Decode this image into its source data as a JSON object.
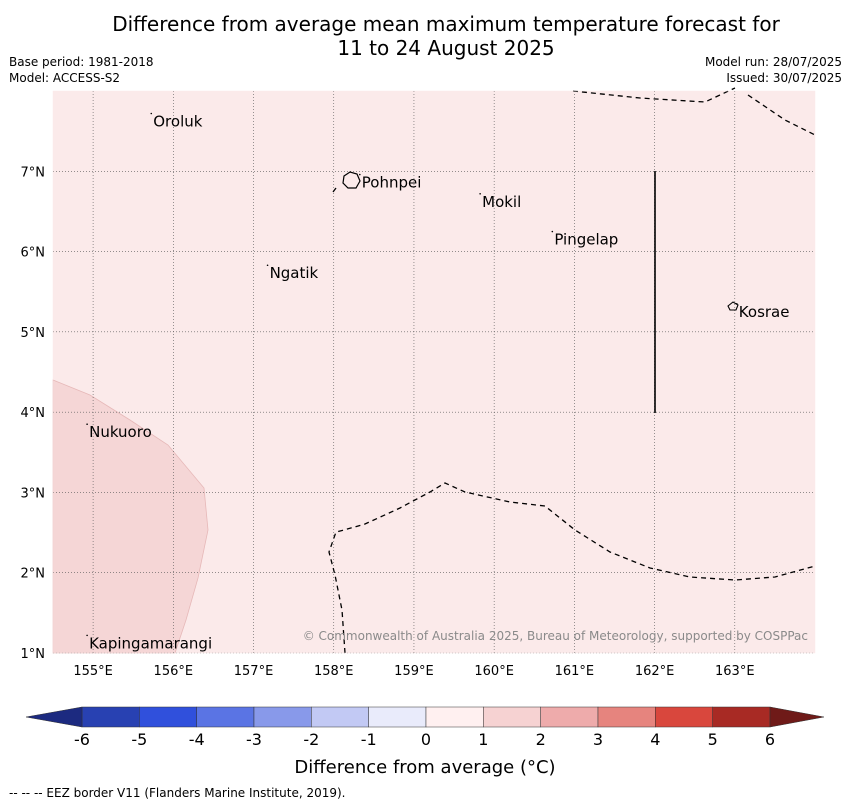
{
  "title_line1": "Difference from average mean maximum temperature forecast for",
  "title_line2": "11 to 24 August 2025",
  "base_period": "Base period: 1981-2018",
  "model": "Model: ACCESS-S2",
  "model_run": "Model run: 28/07/2025",
  "issued": "Issued: 30/07/2025",
  "lon_ticks": [
    "155°E",
    "156°E",
    "157°E",
    "158°E",
    "159°E",
    "160°E",
    "161°E",
    "162°E",
    "163°E"
  ],
  "lat_ticks": [
    "7°N",
    "6°N",
    "5°N",
    "4°N",
    "3°N",
    "2°N",
    "1°N"
  ],
  "places": [
    {
      "name": "Oroluk",
      "lon": 155.75,
      "lat": 7.62
    },
    {
      "name": "Pohnpei",
      "lon": 158.35,
      "lat": 6.86
    },
    {
      "name": "Mokil",
      "lon": 159.85,
      "lat": 6.62
    },
    {
      "name": "Pingelap",
      "lon": 160.75,
      "lat": 6.15
    },
    {
      "name": "Ngatik",
      "lon": 157.2,
      "lat": 5.73
    },
    {
      "name": "Kosrae",
      "lon": 163.05,
      "lat": 5.25
    },
    {
      "name": "Nukuoro",
      "lon": 154.95,
      "lat": 3.75
    },
    {
      "name": "Kapingamarangi",
      "lon": 154.95,
      "lat": 1.12
    }
  ],
  "copyright": "© Commonwealth of Australia 2025, Bureau of Meteorology, supported by COSPPac",
  "colorbar": {
    "labels": [
      "-6",
      "-5",
      "-4",
      "-3",
      "-2",
      "-1",
      "0",
      "1",
      "2",
      "3",
      "4",
      "5",
      "6"
    ],
    "colors": [
      "#2841b2",
      "#3050dc",
      "#5a74e4",
      "#8899ea",
      "#c2c9f4",
      "#e9ebfb",
      "#fff0f0",
      "#f6d2d2",
      "#eeabab",
      "#e6847e",
      "#d9473d",
      "#a82a24"
    ],
    "under_color": "#1c2a80",
    "over_color": "#6f1a18",
    "title": "Difference from average ($^{\\circ}$C)",
    "title_display": "Difference from average (°C)"
  },
  "map_fill": "#fbeaea",
  "anomaly_fill": "#f5d6d6",
  "footer": "-- -- -- EEZ border V11 (Flanders Marine Institute, 2019)."
}
